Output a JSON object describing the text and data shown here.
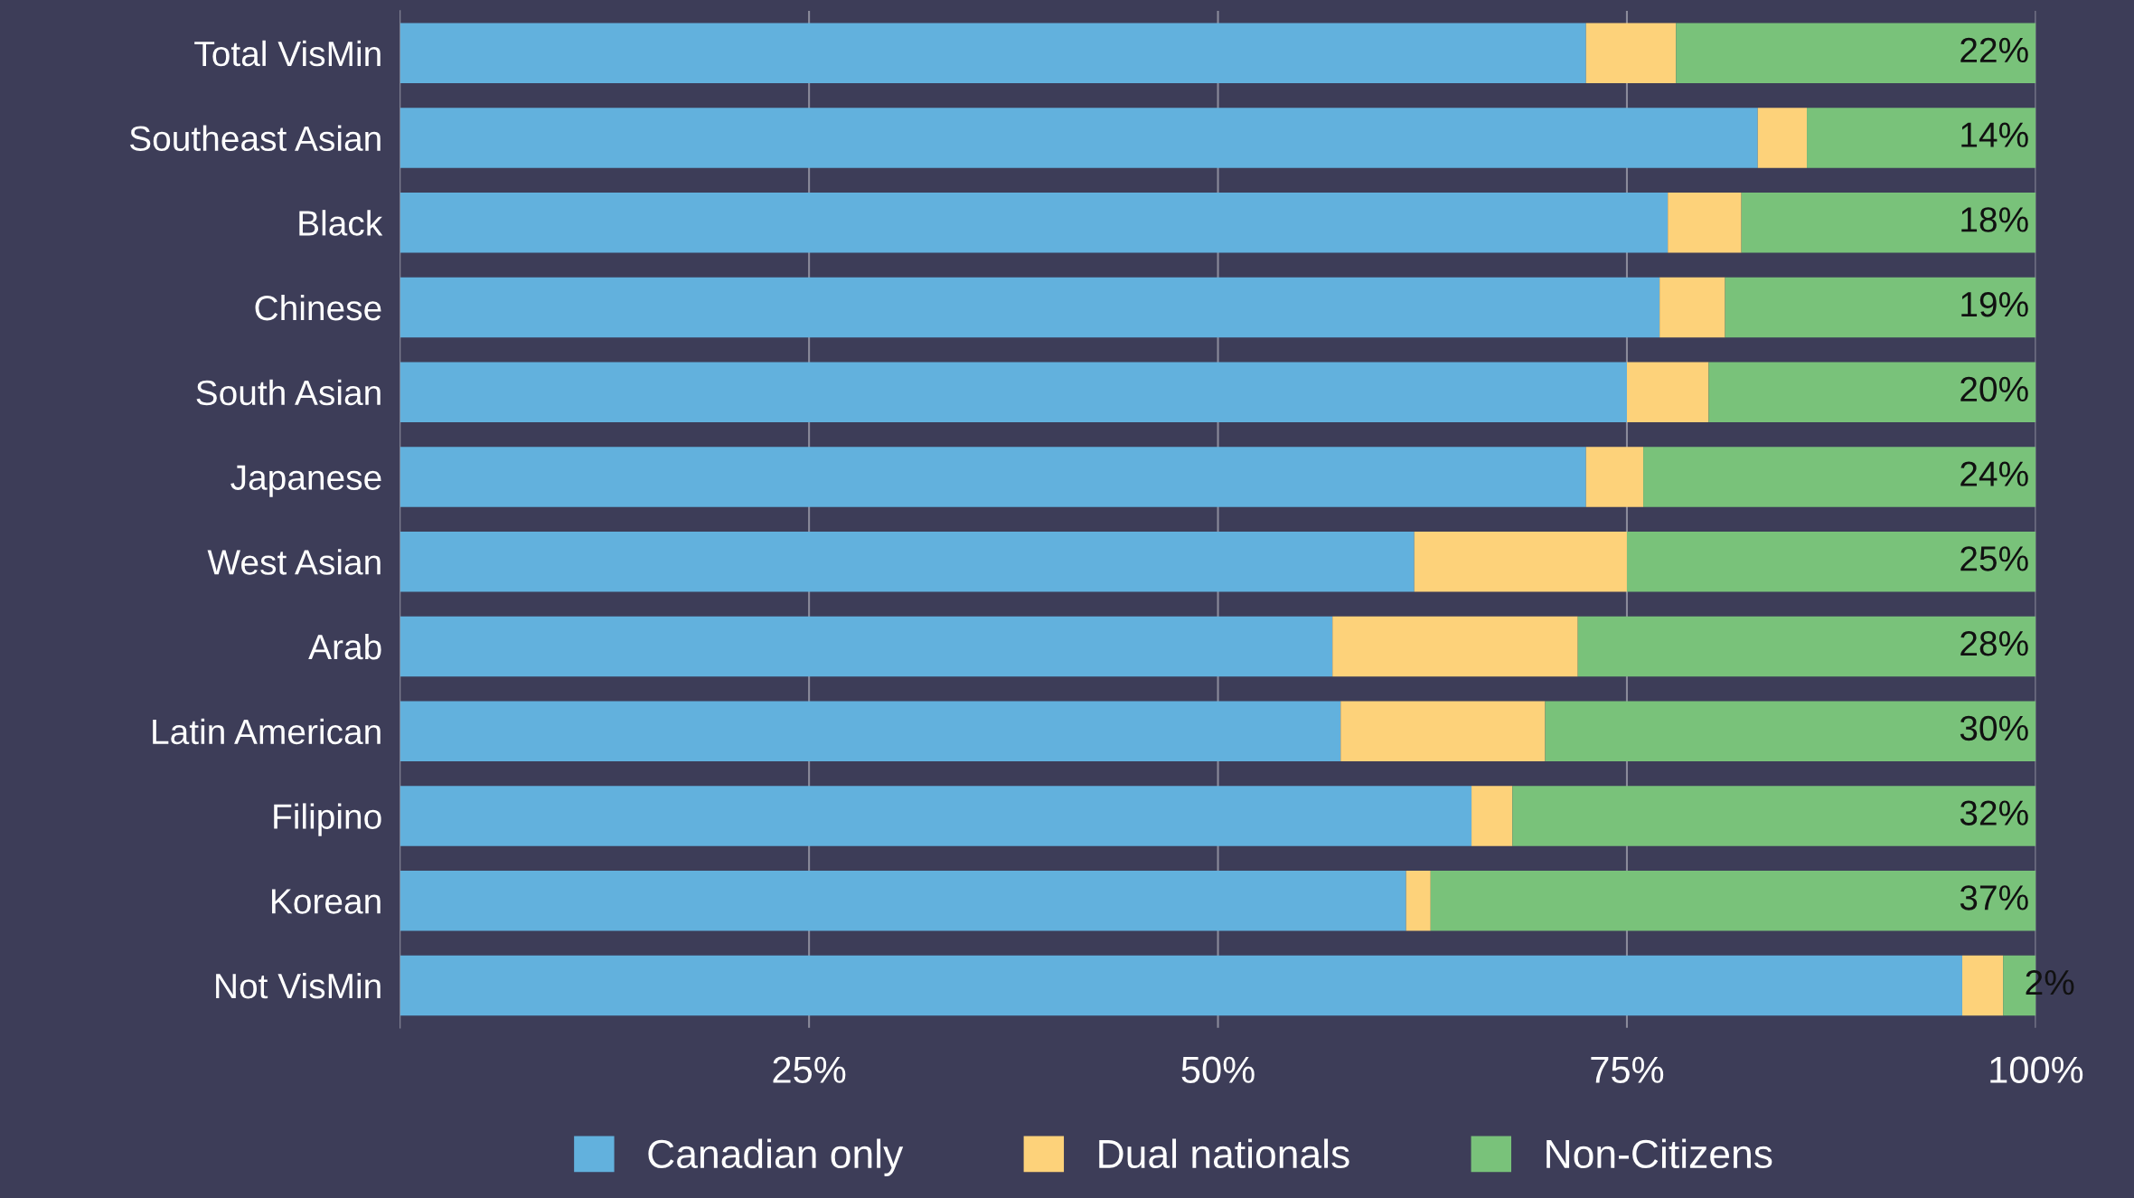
{
  "chart_data": {
    "type": "bar",
    "orientation": "horizontal",
    "stacked": true,
    "categories": [
      "Total VisMin",
      "Southeast Asian",
      "Black",
      "Chinese",
      "South Asian",
      "Japanese",
      "West Asian",
      "Arab",
      "Latin American",
      "Filipino",
      "Korean",
      "Not VisMin"
    ],
    "series": [
      {
        "name": "Canadian only",
        "color": "#62b1dd",
        "values": [
          72.5,
          83,
          77.5,
          77,
          75,
          72.5,
          62,
          57,
          57.5,
          65.5,
          61.5,
          95.5
        ]
      },
      {
        "name": "Dual nationals",
        "color": "#fdd27a",
        "values": [
          5.5,
          3,
          4.5,
          4,
          5,
          3.5,
          13,
          15,
          12.5,
          2.5,
          1.5,
          2.5
        ]
      },
      {
        "name": "Non-Citizens",
        "color": "#79c27a",
        "values": [
          22,
          14,
          18,
          19,
          20,
          24,
          25,
          28,
          30,
          32,
          37,
          2
        ],
        "value_labels": [
          "22%",
          "14%",
          "18%",
          "19%",
          "20%",
          "24%",
          "25%",
          "28%",
          "30%",
          "32%",
          "37%",
          "2%"
        ]
      }
    ],
    "xlim": [
      0,
      100
    ],
    "xticks": [
      {
        "value": 25,
        "label": "25%"
      },
      {
        "value": 50,
        "label": "50%"
      },
      {
        "value": 75,
        "label": "75%"
      },
      {
        "value": 100,
        "label": "100%"
      }
    ],
    "grid": "x",
    "legend": "bottom"
  }
}
